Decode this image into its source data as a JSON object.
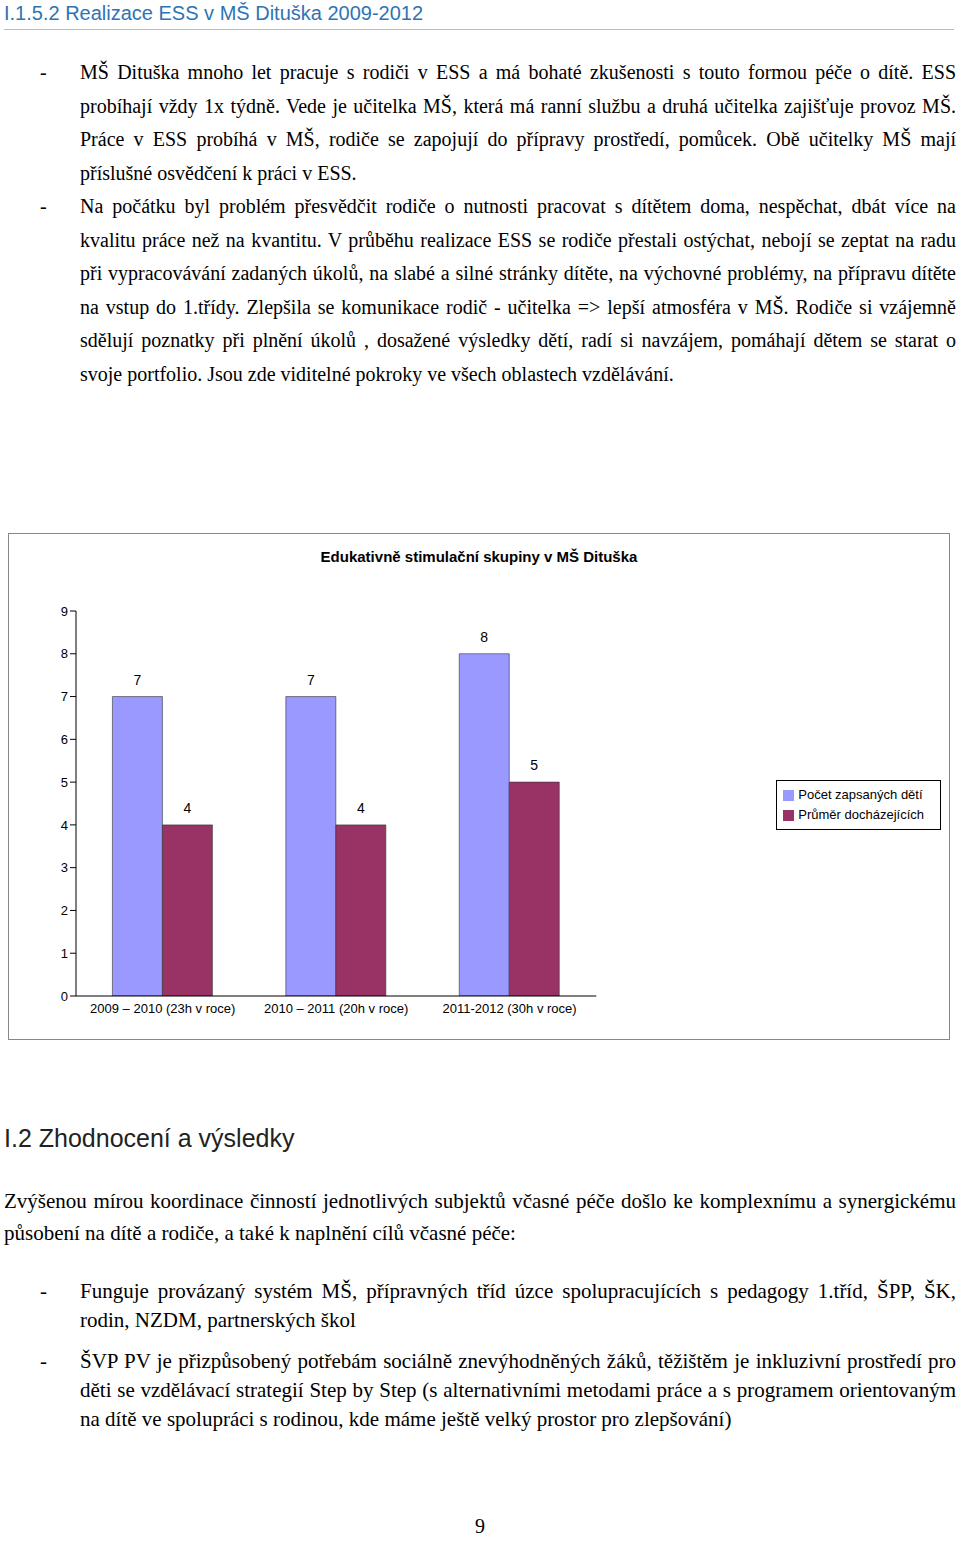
{
  "header": "I.1.5.2 Realizace ESS v MŠ Dituška 2009-2012",
  "bullets_top": [
    "MŠ Dituška mnoho let pracuje s rodiči v ESS a má bohaté zkušenosti s touto formou péče o dítě. ESS probíhají vždy 1x týdně. Vede je učitelka MŠ, která má ranní službu a druhá učitelka zajišťuje provoz MŠ. Práce v ESS probíhá v MŠ, rodiče se zapojují do přípravy prostředí, pomůcek. Obě učitelky MŠ mají příslušné osvědčení k práci v ESS.",
    "Na počátku byl problém přesvědčit rodiče o nutnosti pracovat s dítětem doma, nespěchat, dbát více na kvalitu práce než na kvantitu. V průběhu realizace ESS se rodiče přestali ostýchat, nebojí se zeptat na radu při vypracovávání zadaných úkolů, na slabé a silné stránky dítěte, na výchovné problémy, na přípravu dítěte na vstup do 1.třídy. Zlepšila se komunikace rodič - učitelka => lepší atmosféra v MŠ. Rodiče si vzájemně sdělují poznatky při plnění úkolů , dosažené výsledky dětí, radí si navzájem, pomáhají dětem se starat o svoje portfolio. Jsou zde viditelné pokroky ve všech oblastech vzdělávání."
  ],
  "chart_data": {
    "type": "bar",
    "title": "Edukativně stimulační skupiny v MŠ Dituška",
    "categories": [
      "2009 – 2010 (23h v roce)",
      "2010 – 2011 (20h v roce)",
      "2011-2012 (30h v roce)"
    ],
    "series": [
      {
        "name": "Počet zapsaných dětí",
        "color": "#9999ff",
        "values": [
          7,
          7,
          8
        ]
      },
      {
        "name": "Průměr docházejících",
        "color": "#993366",
        "values": [
          4,
          4,
          5
        ]
      }
    ],
    "ylim": [
      0,
      9
    ],
    "yticks": [
      0,
      1,
      2,
      3,
      4,
      5,
      6,
      7,
      8,
      9
    ],
    "data_labels": true,
    "legend": "right",
    "grid": false
  },
  "section_title": "I.2 Zhodnocení a výsledky",
  "intro": "Zvýšenou mírou koordinace činností jednotlivých subjektů včasné péče došlo ke komplexnímu a synergickému působení na dítě a rodiče, a také k naplnění cílů včasné péče:",
  "bullets_bottom": [
    "Funguje provázaný systém MŠ, přípravných tříd úzce spolupracujících s pedagogy 1.tříd, ŠPP, ŠK, rodin, NZDM, partnerských škol",
    "ŠVP PV je přizpůsobený potřebám sociálně znevýhodněných žáků, těžištěm je inkluzivní prostředí pro děti se vzdělávací strategií Step by Step (s alternativními metodami práce a s programem orientovaným na dítě ve spolupráci s rodinou, kde máme ještě velký prostor pro zlepšování)"
  ],
  "page_number": "9"
}
